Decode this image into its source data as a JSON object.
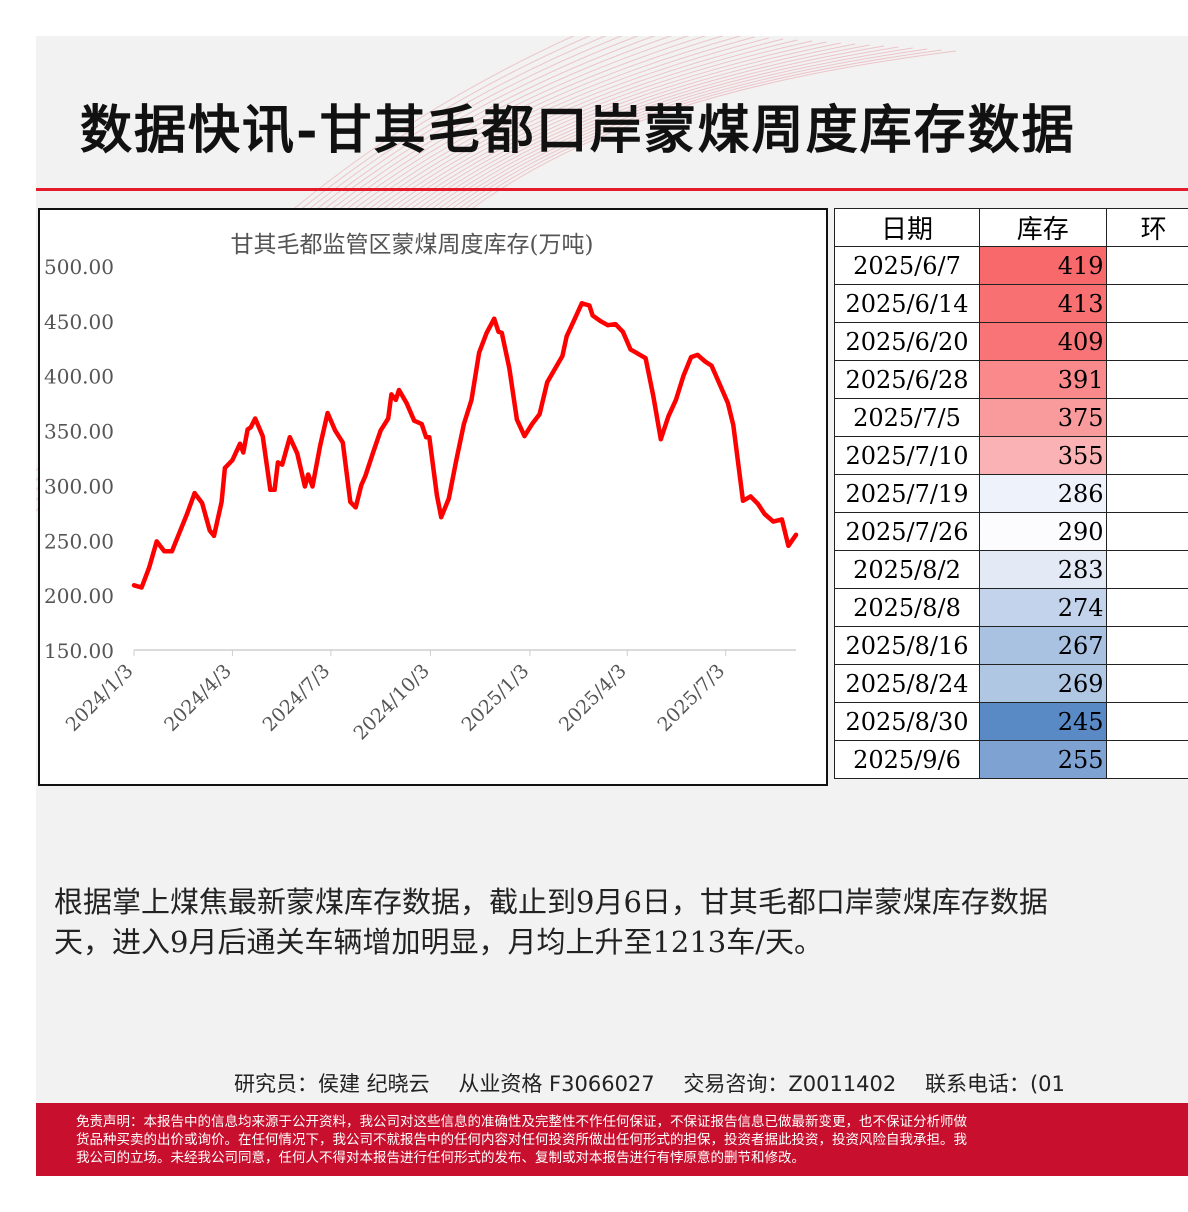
{
  "header": {
    "title": "数据快讯-甘其毛都口岸蒙煤周度库存数据"
  },
  "colors": {
    "accent": "#e31b2a",
    "line": "#ff0000",
    "high": "#f8696b",
    "low": "#5a8ac6",
    "disclaimer_bg": "#c8102e"
  },
  "chart_data": {
    "type": "line",
    "title": "甘其毛都监管区蒙煤周度库存(万吨)",
    "xlabel": "",
    "ylabel": "",
    "ylim": [
      150,
      500
    ],
    "yticks": [
      "500.00",
      "450.00",
      "400.00",
      "350.00",
      "300.00",
      "250.00",
      "200.00",
      "150.00"
    ],
    "xticks": [
      "2024/1/3",
      "2024/4/3",
      "2024/7/3",
      "2024/10/3",
      "2025/1/3",
      "2025/4/3",
      "2025/7/3"
    ],
    "grid": false,
    "legend": "none",
    "series": [
      {
        "values": [
          [
            "2024-01-03",
            209
          ],
          [
            "2024-01-10",
            207
          ],
          [
            "2024-01-17",
            225
          ],
          [
            "2024-01-24",
            249
          ],
          [
            "2024-01-31",
            240
          ],
          [
            "2024-02-07",
            240
          ],
          [
            "2024-02-21",
            274
          ],
          [
            "2024-02-28",
            293
          ],
          [
            "2024-03-06",
            284
          ],
          [
            "2024-03-13",
            259
          ],
          [
            "2024-03-17",
            254
          ],
          [
            "2024-03-24",
            285
          ],
          [
            "2024-03-27",
            316
          ],
          [
            "2024-04-03",
            323
          ],
          [
            "2024-04-10",
            338
          ],
          [
            "2024-04-13",
            330
          ],
          [
            "2024-04-17",
            351
          ],
          [
            "2024-04-20",
            353
          ],
          [
            "2024-04-24",
            361
          ],
          [
            "2024-05-01",
            345
          ],
          [
            "2024-05-08",
            296
          ],
          [
            "2024-05-12",
            296
          ],
          [
            "2024-05-15",
            321
          ],
          [
            "2024-05-19",
            319
          ],
          [
            "2024-05-26",
            344
          ],
          [
            "2024-06-02",
            329
          ],
          [
            "2024-06-09",
            299
          ],
          [
            "2024-06-12",
            310
          ],
          [
            "2024-06-16",
            299
          ],
          [
            "2024-06-23",
            336
          ],
          [
            "2024-06-30",
            366
          ],
          [
            "2024-07-07",
            350
          ],
          [
            "2024-07-14",
            339
          ],
          [
            "2024-07-21",
            285
          ],
          [
            "2024-07-26",
            280
          ],
          [
            "2024-07-31",
            300
          ],
          [
            "2024-08-04",
            309
          ],
          [
            "2024-08-11",
            330
          ],
          [
            "2024-08-18",
            350
          ],
          [
            "2024-08-25",
            361
          ],
          [
            "2024-08-28",
            383
          ],
          [
            "2024-09-01",
            378
          ],
          [
            "2024-09-04",
            387
          ],
          [
            "2024-09-11",
            375
          ],
          [
            "2024-09-18",
            359
          ],
          [
            "2024-09-25",
            356
          ],
          [
            "2024-09-29",
            344
          ],
          [
            "2024-10-02",
            344
          ],
          [
            "2024-10-09",
            291
          ],
          [
            "2024-10-13",
            271
          ],
          [
            "2024-10-20",
            288
          ],
          [
            "2024-10-27",
            323
          ],
          [
            "2024-11-03",
            356
          ],
          [
            "2024-11-10",
            378
          ],
          [
            "2024-11-17",
            421
          ],
          [
            "2024-11-24",
            439
          ],
          [
            "2024-12-01",
            452
          ],
          [
            "2024-12-05",
            440
          ],
          [
            "2024-12-08",
            439
          ],
          [
            "2024-12-15",
            407
          ],
          [
            "2024-12-22",
            360
          ],
          [
            "2024-12-29",
            345
          ],
          [
            "2025-01-05",
            356
          ],
          [
            "2025-01-12",
            365
          ],
          [
            "2025-01-19",
            394
          ],
          [
            "2025-01-26",
            406
          ],
          [
            "2025-02-02",
            418
          ],
          [
            "2025-02-06",
            436
          ],
          [
            "2025-02-13",
            451
          ],
          [
            "2025-02-20",
            466
          ],
          [
            "2025-02-27",
            464
          ],
          [
            "2025-03-02",
            455
          ],
          [
            "2025-03-09",
            450
          ],
          [
            "2025-03-16",
            446
          ],
          [
            "2025-03-23",
            447
          ],
          [
            "2025-03-30",
            440
          ],
          [
            "2025-04-06",
            424
          ],
          [
            "2025-04-13",
            420
          ],
          [
            "2025-04-20",
            416
          ],
          [
            "2025-04-27",
            382
          ],
          [
            "2025-05-04",
            342
          ],
          [
            "2025-05-11",
            363
          ],
          [
            "2025-05-18",
            378
          ],
          [
            "2025-05-25",
            400
          ],
          [
            "2025-06-01",
            417
          ],
          [
            "2025-06-07",
            419
          ],
          [
            "2025-06-14",
            413
          ],
          [
            "2025-06-20",
            409
          ],
          [
            "2025-06-28",
            391
          ],
          [
            "2025-07-05",
            375
          ],
          [
            "2025-07-10",
            355
          ],
          [
            "2025-07-19",
            286
          ],
          [
            "2025-07-26",
            290
          ],
          [
            "2025-08-02",
            283
          ],
          [
            "2025-08-08",
            274
          ],
          [
            "2025-08-16",
            267
          ],
          [
            "2025-08-24",
            269
          ],
          [
            "2025-08-30",
            245
          ],
          [
            "2025-09-06",
            255
          ]
        ]
      }
    ]
  },
  "table": {
    "headers": [
      "日期",
      "库存",
      "环"
    ],
    "rows": [
      {
        "date": "2025/6/7",
        "stock": 419
      },
      {
        "date": "2025/6/14",
        "stock": 413
      },
      {
        "date": "2025/6/20",
        "stock": 409
      },
      {
        "date": "2025/6/28",
        "stock": 391
      },
      {
        "date": "2025/7/5",
        "stock": 375
      },
      {
        "date": "2025/7/10",
        "stock": 355
      },
      {
        "date": "2025/7/19",
        "stock": 286
      },
      {
        "date": "2025/7/26",
        "stock": 290
      },
      {
        "date": "2025/8/2",
        "stock": 283
      },
      {
        "date": "2025/8/8",
        "stock": 274
      },
      {
        "date": "2025/8/16",
        "stock": 267
      },
      {
        "date": "2025/8/24",
        "stock": 269
      },
      {
        "date": "2025/8/30",
        "stock": 245
      },
      {
        "date": "2025/9/6",
        "stock": 255
      }
    ]
  },
  "summary": {
    "line1": "根据掌上煤焦最新蒙煤库存数据，截止到9月6日，甘其毛都口岸蒙煤库存数据",
    "line2": "天，进入9月后通关车辆增加明显，月均上升至1213车/天。"
  },
  "contact": {
    "analysts": "研究员：侯建 纪晓云",
    "license": "从业资格 F3066027",
    "consult": "交易咨询：Z0011402",
    "phone": "联系电话：(01"
  },
  "disclaimer": {
    "line1": "免责声明：本报告中的信息均来源于公开资料，我公司对这些信息的准确性及完整性不作任何保证，不保证报告信息已做最新变更，也不保证分析师做",
    "line2": "货品种买卖的出价或询价。在任何情况下，我公司不就报告中的任何内容对任何投资所做出任何形式的担保，投资者据此投资，投资风险自我承担。我",
    "line3": "我公司的立场。未经我公司同意，任何人不得对本报告进行任何形式的发布、复制或对本报告进行有悖原意的删节和修改。"
  }
}
